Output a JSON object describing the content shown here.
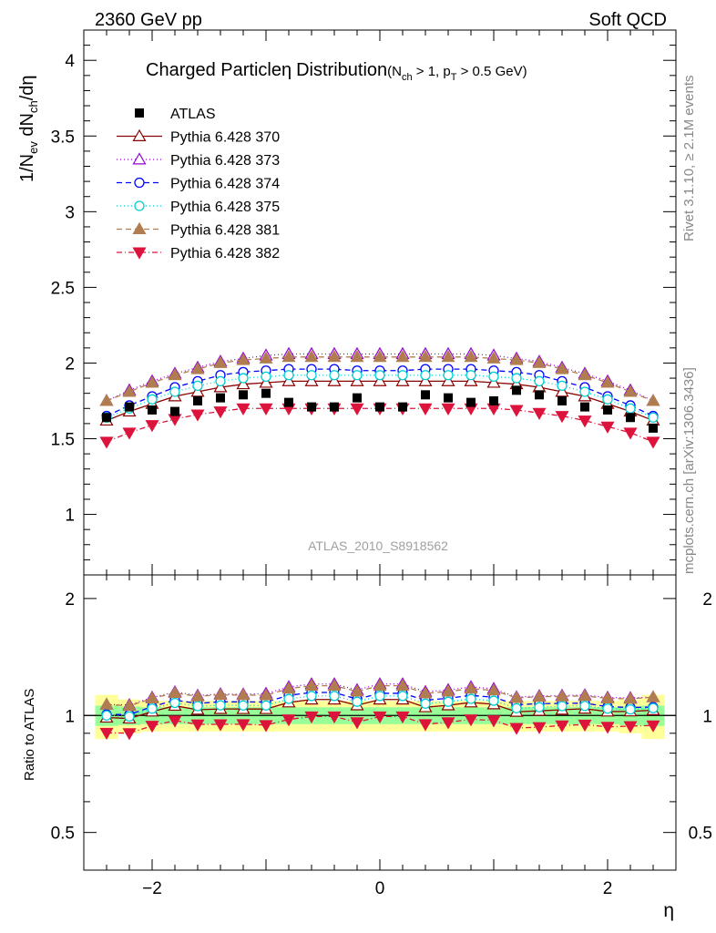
{
  "header": {
    "energy_label": "2360 GeV pp",
    "category_label": "Soft QCD",
    "title_main": "Charged Particle",
    "title_eta": "η",
    "title_dist": "Distribution",
    "title_cut_1": "(N",
    "title_cut_1_sub": "ch",
    "title_cut_2": " > 1, p",
    "title_cut_2_sub": "T",
    "title_cut_3": " > 0.5 GeV)",
    "analysis_id": "ATLAS_2010_S8918562"
  },
  "side_text": {
    "rivet": "Rivet 3.1.10, ≥ 2.1M events",
    "mcplots": "mcplots.cern.ch [arXiv:1306.3436]"
  },
  "axes": {
    "y_main_label": "1/N",
    "y_main_label_sub1": "ev",
    "y_main_label_mid": " dN",
    "y_main_label_sub2": "ch",
    "y_main_label_end": "/dη",
    "y_ratio_label": "Ratio to ATLAS",
    "x_label": "η",
    "main_ylim": [
      0.6,
      4.2
    ],
    "ratio_ylim": [
      0.4,
      2.3
    ],
    "xlim": [
      -2.6,
      2.6
    ],
    "main_yticks": [
      "1",
      "1.5",
      "2",
      "2.5",
      "3",
      "3.5",
      "4"
    ],
    "ratio_yticks": [
      "0.5",
      "1",
      "2"
    ],
    "xticks": [
      "−2",
      "0",
      "2"
    ]
  },
  "chart_data": {
    "type": "scatter",
    "x": [
      -2.4,
      -2.2,
      -2.0,
      -1.8,
      -1.6,
      -1.4,
      -1.2,
      -1.0,
      -0.8,
      -0.6,
      -0.4,
      -0.2,
      0.0,
      0.2,
      0.4,
      0.6,
      0.8,
      1.0,
      1.2,
      1.4,
      1.6,
      1.8,
      2.0,
      2.2,
      2.4
    ],
    "series": [
      {
        "name": "ATLAS",
        "color": "#000000",
        "values": [
          1.64,
          1.71,
          1.69,
          1.68,
          1.75,
          1.77,
          1.79,
          1.8,
          1.74,
          1.71,
          1.71,
          1.77,
          1.71,
          1.71,
          1.79,
          1.77,
          1.74,
          1.75,
          1.82,
          1.79,
          1.75,
          1.71,
          1.69,
          1.64,
          1.57
        ],
        "ratio_band_inner": [
          0.06,
          0.055,
          0.05,
          0.05,
          0.05,
          0.05,
          0.05,
          0.05,
          0.05,
          0.05,
          0.05,
          0.05,
          0.05,
          0.05,
          0.05,
          0.05,
          0.05,
          0.05,
          0.05,
          0.05,
          0.05,
          0.05,
          0.05,
          0.055,
          0.06
        ],
        "ratio_band_outer": [
          0.13,
          0.1,
          0.09,
          0.09,
          0.09,
          0.09,
          0.09,
          0.09,
          0.09,
          0.09,
          0.09,
          0.09,
          0.09,
          0.09,
          0.09,
          0.09,
          0.09,
          0.09,
          0.09,
          0.09,
          0.09,
          0.09,
          0.09,
          0.1,
          0.13
        ]
      },
      {
        "name": "Pythia 6.428 370",
        "color": "#8b0000",
        "marker": "triangle-up-open",
        "dash": "",
        "values": [
          1.62,
          1.68,
          1.73,
          1.78,
          1.81,
          1.84,
          1.86,
          1.87,
          1.88,
          1.88,
          1.88,
          1.88,
          1.88,
          1.88,
          1.88,
          1.88,
          1.88,
          1.87,
          1.86,
          1.84,
          1.81,
          1.78,
          1.73,
          1.68,
          1.62
        ]
      },
      {
        "name": "Pythia 6.428 373",
        "color": "#9400d3",
        "marker": "triangle-up-open",
        "dash": "1,3",
        "values": [
          1.75,
          1.82,
          1.88,
          1.93,
          1.97,
          2.01,
          2.03,
          2.05,
          2.06,
          2.06,
          2.06,
          2.06,
          2.06,
          2.06,
          2.06,
          2.06,
          2.06,
          2.05,
          2.03,
          2.01,
          1.97,
          1.93,
          1.88,
          1.82,
          1.75
        ]
      },
      {
        "name": "Pythia 6.428 374",
        "color": "#0000ff",
        "marker": "circle-open",
        "dash": "6,4",
        "values": [
          1.65,
          1.72,
          1.78,
          1.84,
          1.88,
          1.92,
          1.94,
          1.95,
          1.96,
          1.96,
          1.96,
          1.95,
          1.95,
          1.95,
          1.96,
          1.96,
          1.96,
          1.95,
          1.94,
          1.92,
          1.88,
          1.84,
          1.78,
          1.72,
          1.65
        ]
      },
      {
        "name": "Pythia 6.428 375",
        "color": "#00ced1",
        "marker": "circle-open",
        "dash": "1,3",
        "values": [
          1.64,
          1.7,
          1.76,
          1.81,
          1.85,
          1.88,
          1.9,
          1.91,
          1.92,
          1.92,
          1.92,
          1.92,
          1.92,
          1.92,
          1.92,
          1.92,
          1.92,
          1.91,
          1.9,
          1.88,
          1.85,
          1.81,
          1.76,
          1.7,
          1.64
        ]
      },
      {
        "name": "Pythia 6.428 381",
        "color": "#b07d50",
        "marker": "triangle-up-filled",
        "dash": "6,4",
        "values": [
          1.75,
          1.81,
          1.87,
          1.92,
          1.96,
          2.0,
          2.02,
          2.03,
          2.04,
          2.04,
          2.04,
          2.04,
          2.04,
          2.04,
          2.04,
          2.04,
          2.04,
          2.03,
          2.02,
          2.0,
          1.96,
          1.92,
          1.87,
          1.81,
          1.75
        ]
      },
      {
        "name": "Pythia 6.428 382",
        "color": "#dc143c",
        "marker": "triangle-down-filled",
        "dash": "6,3,1,3",
        "values": [
          1.48,
          1.54,
          1.59,
          1.63,
          1.66,
          1.68,
          1.7,
          1.7,
          1.7,
          1.7,
          1.7,
          1.7,
          1.7,
          1.7,
          1.7,
          1.7,
          1.7,
          1.7,
          1.69,
          1.67,
          1.65,
          1.62,
          1.58,
          1.54,
          1.48
        ]
      }
    ]
  }
}
